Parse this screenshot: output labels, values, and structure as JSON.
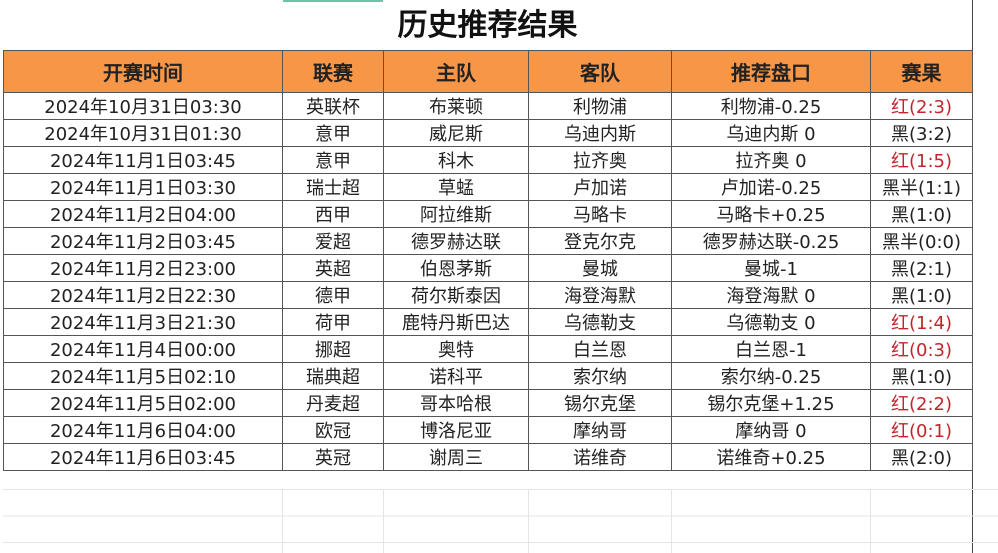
{
  "title": "历史推荐结果",
  "headers": [
    "开赛时间",
    "联赛",
    "主队",
    "客队",
    "推荐盘口",
    "赛果"
  ],
  "rows": [
    {
      "time": "2024年10月31日03:30",
      "league": "英联杯",
      "home": "布莱顿",
      "away": "利物浦",
      "pick": "利物浦-0.25",
      "result": "红(2:3)",
      "win": true
    },
    {
      "time": "2024年10月31日01:30",
      "league": "意甲",
      "home": "威尼斯",
      "away": "乌迪内斯",
      "pick": "乌迪内斯 0",
      "result": "黑(3:2)",
      "win": false
    },
    {
      "time": "2024年11月1日03:45",
      "league": "意甲",
      "home": "科木",
      "away": "拉齐奥",
      "pick": "拉齐奥 0",
      "result": "红(1:5)",
      "win": true
    },
    {
      "time": "2024年11月1日03:30",
      "league": "瑞士超",
      "home": "草蜢",
      "away": "卢加诺",
      "pick": "卢加诺-0.25",
      "result": "黑半(1:1)",
      "win": false
    },
    {
      "time": "2024年11月2日04:00",
      "league": "西甲",
      "home": "阿拉维斯",
      "away": "马略卡",
      "pick": "马略卡+0.25",
      "result": "黑(1:0)",
      "win": false
    },
    {
      "time": "2024年11月2日03:45",
      "league": "爱超",
      "home": "德罗赫达联",
      "away": "登克尔克",
      "pick": "德罗赫达联-0.25",
      "result": "黑半(0:0)",
      "win": false
    },
    {
      "time": "2024年11月2日23:00",
      "league": "英超",
      "home": "伯恩茅斯",
      "away": "曼城",
      "pick": "曼城-1",
      "result": "黑(2:1)",
      "win": false
    },
    {
      "time": "2024年11月2日22:30",
      "league": "德甲",
      "home": "荷尔斯泰因",
      "away": "海登海默",
      "pick": "海登海默 0",
      "result": "黑(1:0)",
      "win": false
    },
    {
      "time": "2024年11月3日21:30",
      "league": "荷甲",
      "home": "鹿特丹斯巴达",
      "away": "乌德勒支",
      "pick": "乌德勒支 0",
      "result": "红(1:4)",
      "win": true
    },
    {
      "time": "2024年11月4日00:00",
      "league": "挪超",
      "home": "奥特",
      "away": "白兰恩",
      "pick": "白兰恩-1",
      "result": "红(0:3)",
      "win": true
    },
    {
      "time": "2024年11月5日02:10",
      "league": "瑞典超",
      "home": "诺科平",
      "away": "索尔纳",
      "pick": "索尔纳-0.25",
      "result": "黑(1:0)",
      "win": false
    },
    {
      "time": "2024年11月5日02:00",
      "league": "丹麦超",
      "home": "哥本哈根",
      "away": "锡尔克堡",
      "pick": "锡尔克堡+1.25",
      "result": "红(2:2)",
      "win": true
    },
    {
      "time": "2024年11月6日04:00",
      "league": "欧冠",
      "home": "博洛尼亚",
      "away": "摩纳哥",
      "pick": "摩纳哥 0",
      "result": "红(0:1)",
      "win": true
    },
    {
      "time": "2024年11月6日03:45",
      "league": "英冠",
      "home": "谢周三",
      "away": "诺维奇",
      "pick": "诺维奇+0.25",
      "result": "黑(2:0)",
      "win": false
    }
  ],
  "colors": {
    "header": "#f79646",
    "win": "#c0272d",
    "loss": "#222222"
  }
}
